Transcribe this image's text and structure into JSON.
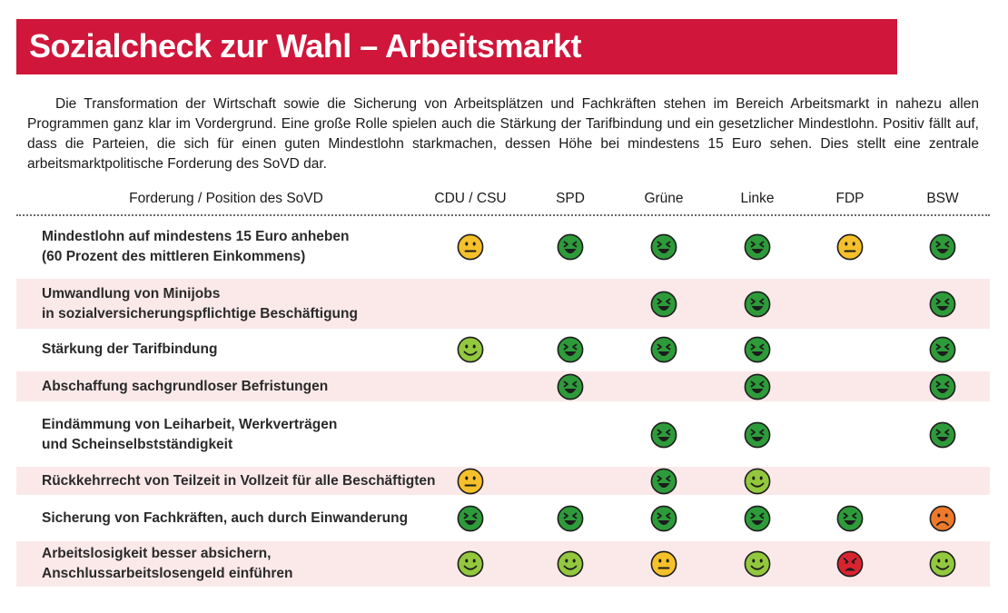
{
  "title": "Sozialcheck zur Wahl – Arbeitsmarkt",
  "intro": "Die Transformation der Wirtschaft sowie die Sicherung von Arbeitsplätzen und Fachkräften stehen im Bereich Arbeitsmarkt in nahezu allen Programmen ganz klar im Vordergrund. Eine große Rolle spielen auch die Stärkung der Tarifbindung und ein gesetzlicher Mindestlohn. Positiv fällt auf, dass die Parteien, die sich für einen guten Mindestlohn starkmachen, dessen Höhe bei mindestens 15 Euro sehen. Dies stellt eine zentrale arbeitsmarktpolitische Forderung des SoVD dar.",
  "table": {
    "column_label": "Forderung / Position des SoVD",
    "parties": [
      "CDU / CSU",
      "SPD",
      "Grüne",
      "Linke",
      "FDP",
      "BSW"
    ],
    "legend_colors": {
      "very-positive": "#2e9b3a",
      "positive": "#93c83e",
      "neutral": "#f5c02a",
      "negative": "#ec7a2a",
      "very-negative": "#d9242f"
    },
    "rows": [
      {
        "demand": [
          "Mindestlohn auf mindestens 15 Euro anheben",
          "(60 Prozent des mittleren Einkommens)"
        ],
        "ratings": [
          "neutral",
          "very-positive",
          "very-positive",
          "very-positive",
          "neutral",
          "very-positive"
        ]
      },
      {
        "demand": [
          "Umwandlung von Minijobs",
          "in sozialversicherungspflichtige Beschäftigung"
        ],
        "ratings": [
          "",
          "",
          "very-positive",
          "very-positive",
          "",
          "very-positive"
        ]
      },
      {
        "demand": [
          "Stärkung der Tarifbindung"
        ],
        "ratings": [
          "positive",
          "very-positive",
          "very-positive",
          "very-positive",
          "",
          "very-positive"
        ]
      },
      {
        "demand": [
          "Abschaffung sachgrundloser Befristungen"
        ],
        "ratings": [
          "",
          "very-positive",
          "",
          "very-positive",
          "",
          "very-positive"
        ]
      },
      {
        "demand": [
          "Eindämmung von Leiharbeit, Werkverträgen",
          "und Scheinselbstständigkeit"
        ],
        "ratings": [
          "",
          "",
          "very-positive",
          "very-positive",
          "",
          "very-positive"
        ]
      },
      {
        "demand": [
          "Rückkehrrecht von Teilzeit in Vollzeit für alle Beschäftigten"
        ],
        "ratings": [
          "neutral",
          "",
          "very-positive",
          "positive",
          "",
          ""
        ]
      },
      {
        "demand": [
          "Sicherung von Fachkräften, auch durch Einwanderung"
        ],
        "ratings": [
          "very-positive",
          "very-positive",
          "very-positive",
          "very-positive",
          "very-positive",
          "negative"
        ]
      },
      {
        "demand": [
          "Arbeitslosigkeit besser absichern,",
          "Anschlussarbeitslosengeld einführen"
        ],
        "ratings": [
          "positive",
          "positive",
          "neutral",
          "positive",
          "very-negative",
          "positive"
        ]
      }
    ]
  }
}
